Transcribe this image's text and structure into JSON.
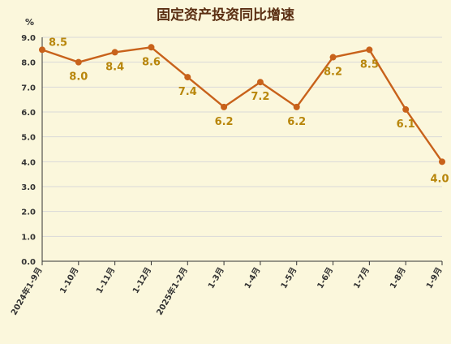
{
  "colors": {
    "background": "#fbf7dc",
    "line": "#c8621b",
    "marker": "#c8621b",
    "label": "#b8860b",
    "grid": "#d9d9d9",
    "axis": "#333333",
    "title": "#5a2e12"
  },
  "chart_data": {
    "type": "line",
    "title": "固定资产投资同比增速",
    "ylabel": "%",
    "xlabel": "",
    "ylim": [
      0,
      9
    ],
    "ytick_step": 1,
    "y_ticks": [
      "0.0",
      "1.0",
      "2.0",
      "3.0",
      "4.0",
      "5.0",
      "6.0",
      "7.0",
      "8.0",
      "9.0"
    ],
    "grid": true,
    "categories": [
      "2024年1-9月",
      "1-10月",
      "1-11月",
      "1-12月",
      "2025年1-2月",
      "1-3月",
      "1-4月",
      "1-5月",
      "1-6月",
      "1-7月",
      "1-8月",
      "1-9月"
    ],
    "series": [
      {
        "values": [
          8.5,
          8.0,
          8.4,
          8.6,
          7.4,
          6.2,
          7.2,
          6.2,
          8.2,
          8.5,
          6.1,
          4.0
        ],
        "labels": [
          "8.5",
          "8.0",
          "8.4",
          "8.6",
          "7.4",
          "6.2",
          "7.2",
          "6.2",
          "8.2",
          "8.5",
          "6.1",
          "4.0"
        ]
      }
    ]
  }
}
